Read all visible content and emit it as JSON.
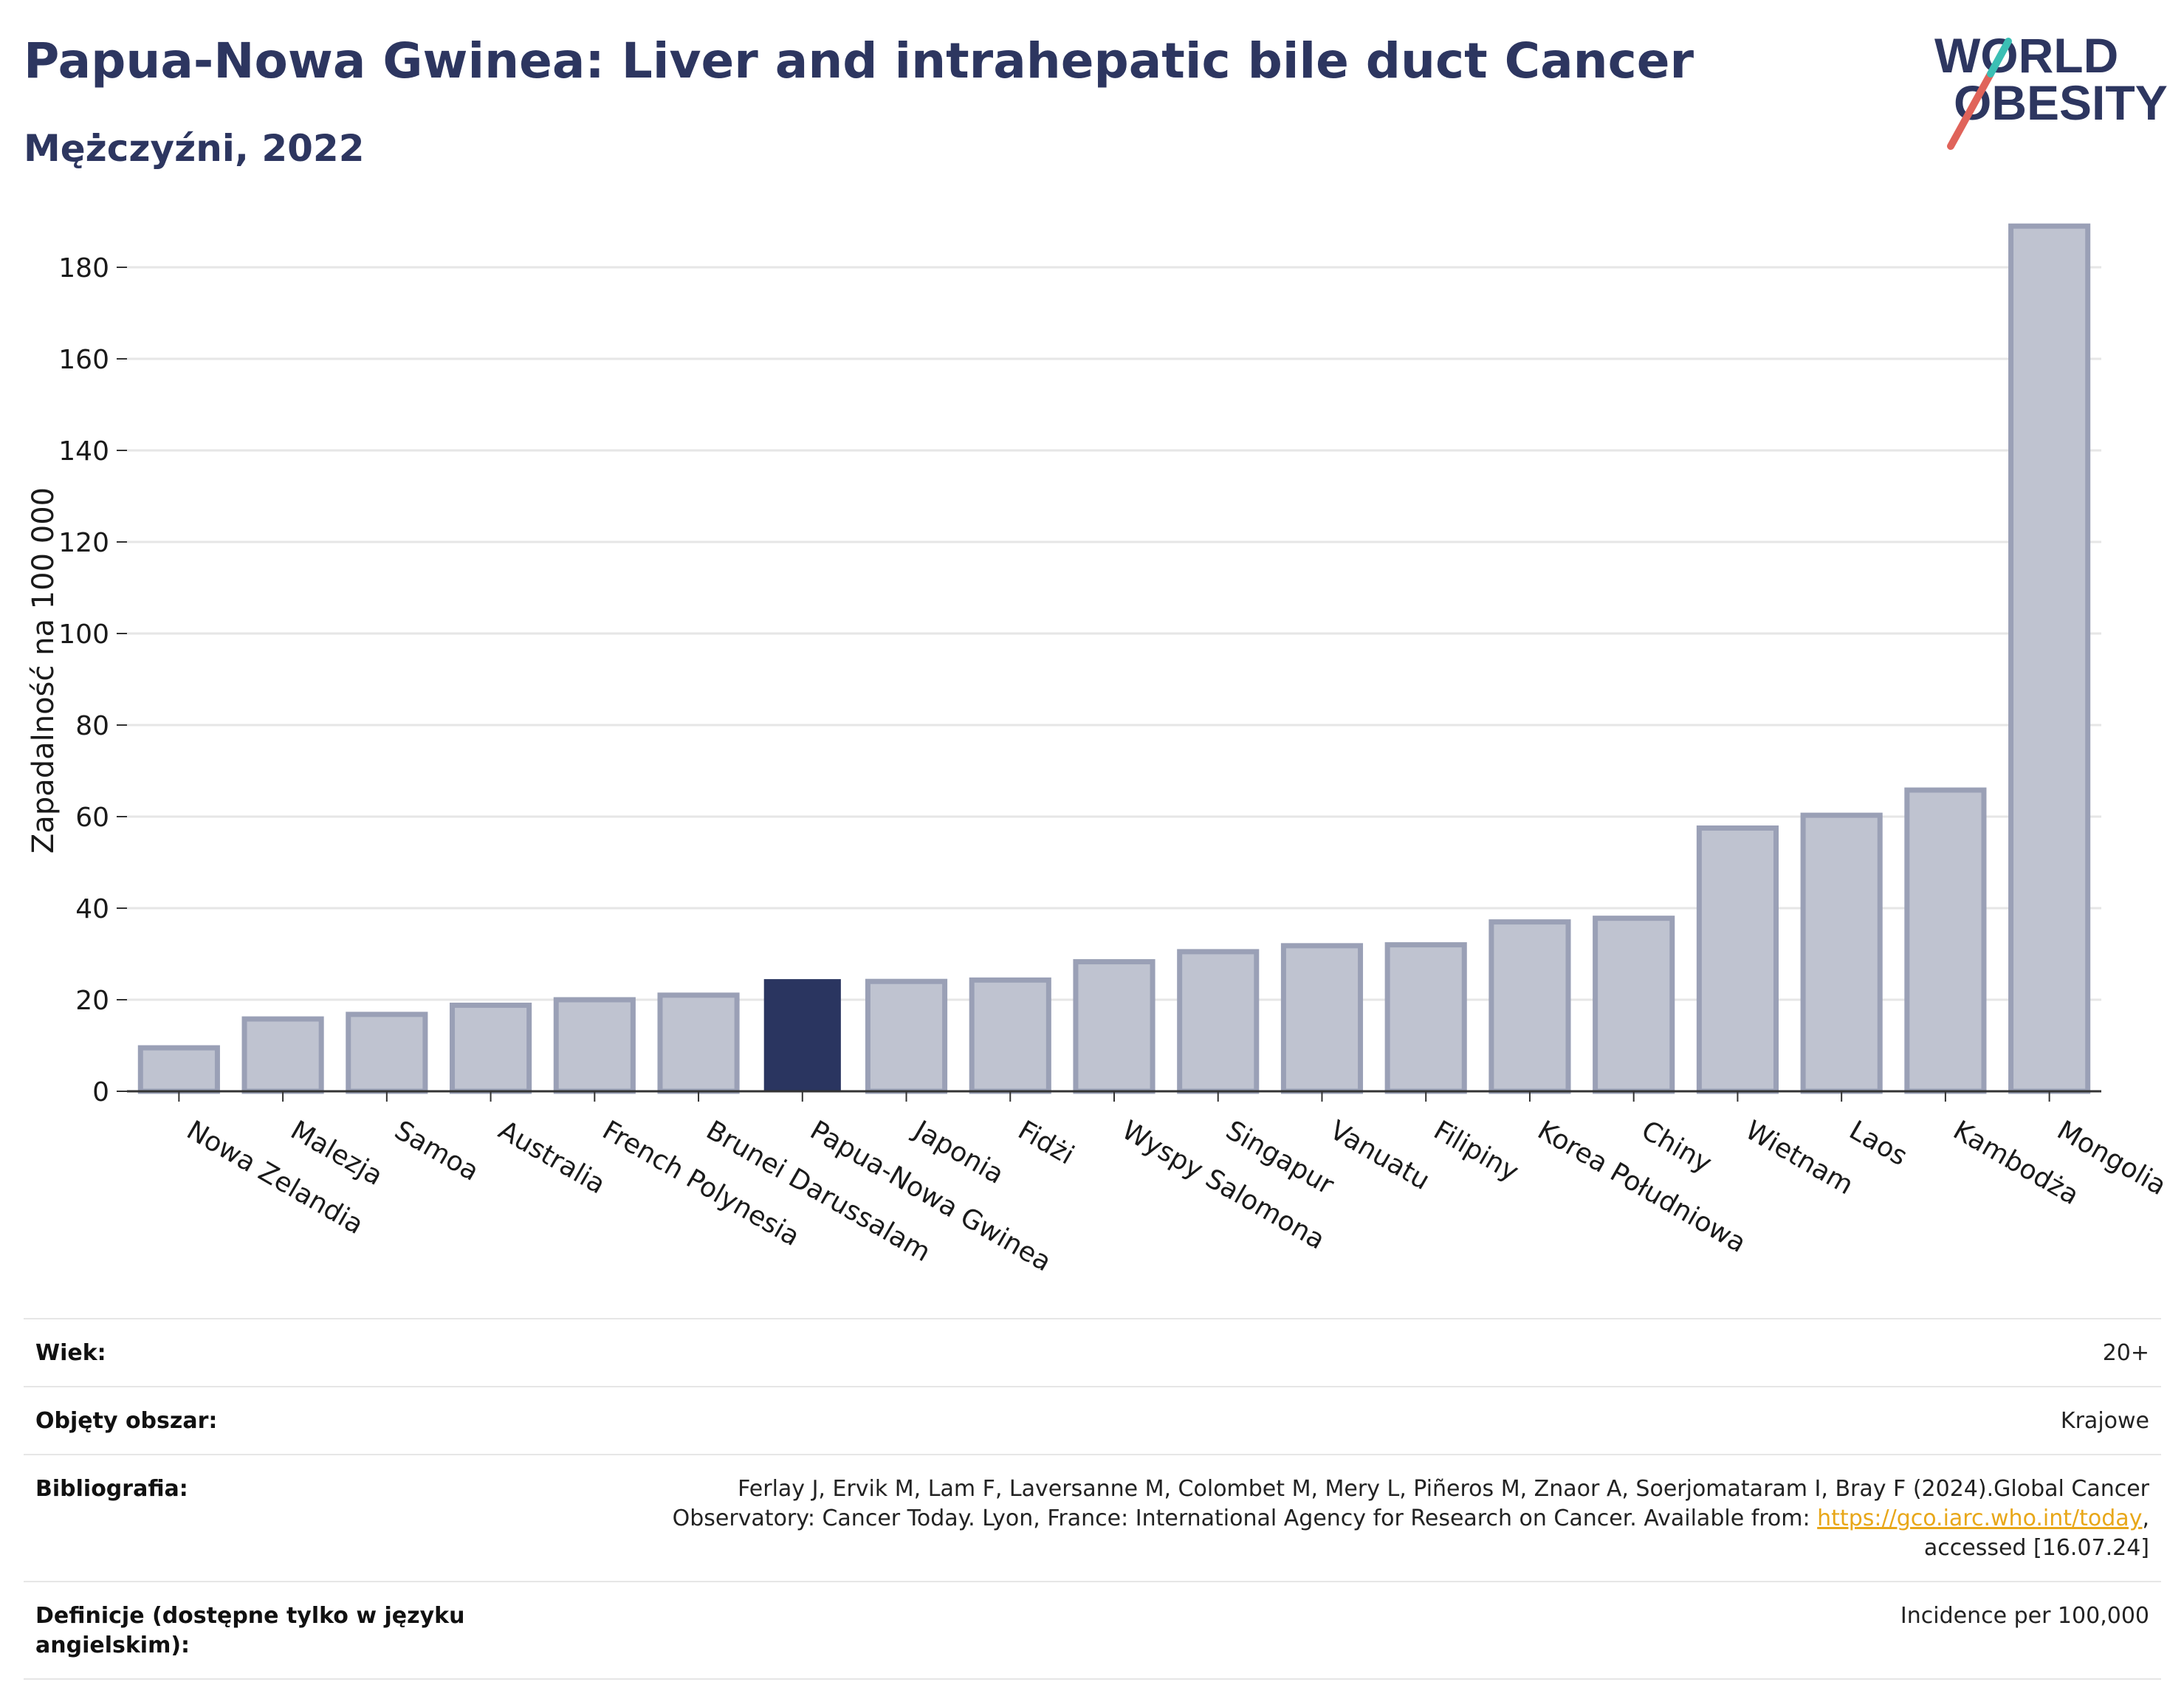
{
  "header": {
    "title": "Papua-Nowa Gwinea: Liver and intrahepatic bile duct Cancer",
    "subtitle": "Mężczyźni, 2022"
  },
  "logo": {
    "line1": "WORLD",
    "line2": "OBESITY",
    "colors": {
      "text": "#2d3660",
      "slash_red": "#e0635a",
      "slash_teal": "#3bbfb4"
    }
  },
  "colors": {
    "bar_fill": "#bfc3d0",
    "bar_stroke": "#9aa0b6",
    "highlight": "#2a3560",
    "grid": "#e6e6e6",
    "axis": "#333333"
  },
  "chart_data": {
    "type": "bar",
    "categories": [
      "Nowa Zelandia",
      "Malezja",
      "Samoa",
      "Australia",
      "French Polynesia",
      "Brunei Darussalam",
      "Papua-Nowa Gwinea",
      "Japonia",
      "Fidżi",
      "Wyspy Salomona",
      "Singapur",
      "Vanuatu",
      "Filipiny",
      "Korea Południowa",
      "Chiny",
      "Wietnam",
      "Laos",
      "Kambodża",
      "Mongolia"
    ],
    "values": [
      9.5,
      15.8,
      16.8,
      18.8,
      20.0,
      21.0,
      24.5,
      24.0,
      24.3,
      28.3,
      30.5,
      31.8,
      32.0,
      37.0,
      37.8,
      57.5,
      60.3,
      65.8,
      189.0
    ],
    "highlight": "Papua-Nowa Gwinea",
    "ylabel": "Zapadalność na 100 000",
    "xlabel": "",
    "ylim": [
      0,
      190
    ],
    "yticks": [
      0,
      20,
      40,
      60,
      80,
      100,
      120,
      140,
      160,
      180
    ],
    "grid": true
  },
  "info": {
    "rows": [
      {
        "label": "Wiek:",
        "value": "20+"
      },
      {
        "label": "Objęty obszar:",
        "value": "Krajowe"
      },
      {
        "label": "Bibliografia:",
        "value_line1": "Ferlay J, Ervik M, Lam F, Laversanne M, Colombet M, Mery L, Piñeros M, Znaor A, Soerjomataram I, Bray F (2024).Global Cancer",
        "value_line2_pre": "Observatory: Cancer Today. Lyon, France: International Agency for Research on Cancer. Available from: ",
        "value_link": "https://gco.iarc.who.int/today",
        "value_line2_post": ",",
        "value_line3": "accessed [16.07.24]"
      },
      {
        "label": "Definicje (dostępne tylko w języku angielskim):",
        "value": "Incidence per 100,000"
      }
    ]
  }
}
